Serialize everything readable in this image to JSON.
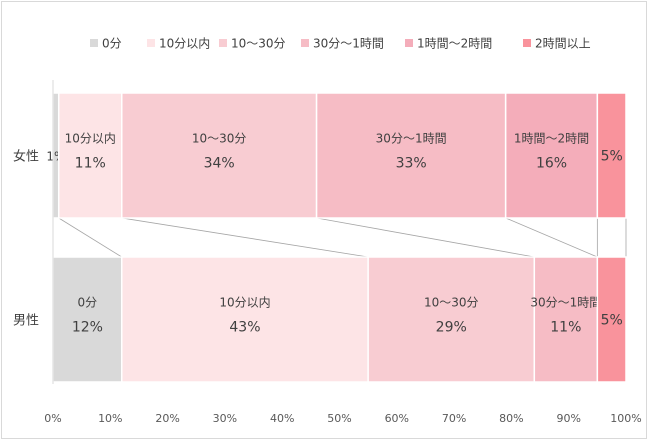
{
  "chart_data": {
    "type": "bar",
    "orientation": "horizontal",
    "stacked": true,
    "normalized": true,
    "title": "",
    "xlabel": "",
    "ylabel": "",
    "xlim": [
      0,
      100
    ],
    "x_tick_labels": [
      "0%",
      "10%",
      "20%",
      "30%",
      "40%",
      "50%",
      "60%",
      "70%",
      "80%",
      "90%",
      "100%"
    ],
    "legend_position": "top",
    "categories": [
      "女性",
      "男性"
    ],
    "series": [
      {
        "name": "0分",
        "color": "#d9d9d9",
        "values": [
          1,
          12
        ],
        "labels": [
          "1%",
          "12%"
        ]
      },
      {
        "name": "10分以内",
        "color": "#fde4e6",
        "values": [
          11,
          43
        ],
        "labels": [
          "11%",
          "43%"
        ]
      },
      {
        "name": "10〜30分",
        "color": "#f8ccd2",
        "values": [
          34,
          29
        ],
        "labels": [
          "34%",
          "29%"
        ]
      },
      {
        "name": "30分〜1時間",
        "color": "#f6bcc5",
        "values": [
          33,
          11
        ],
        "labels": [
          "33%",
          "11%"
        ]
      },
      {
        "name": "1時間〜2時間",
        "color": "#f4adba",
        "values": [
          16,
          0
        ],
        "labels": [
          "16%",
          ""
        ]
      },
      {
        "name": "2時間以上",
        "color": "#f9939c",
        "values": [
          5,
          5
        ],
        "labels": [
          "5%",
          "5%"
        ]
      }
    ],
    "grid": false,
    "series_lines": true
  }
}
